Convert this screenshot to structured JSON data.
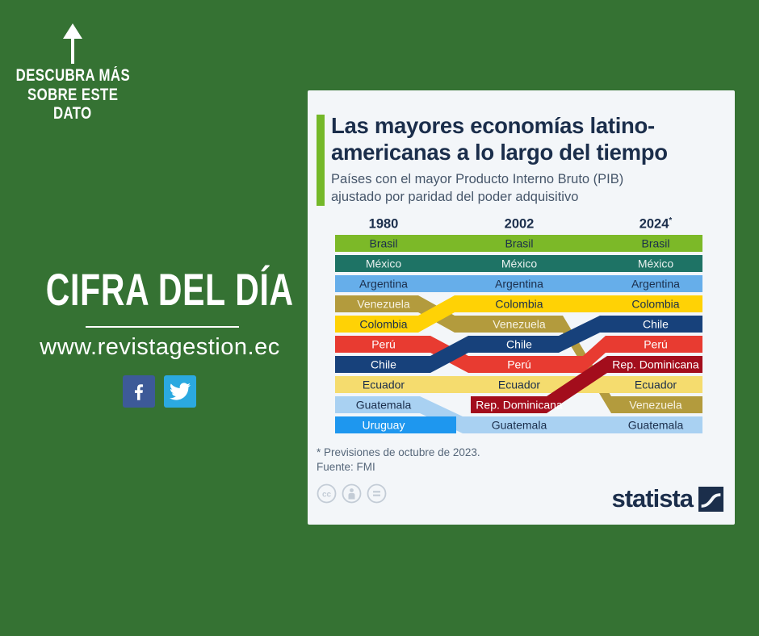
{
  "page": {
    "background_color": "#357233"
  },
  "left_panel": {
    "arrow_caption_lines": [
      "DESCUBRA MÁS",
      "SOBRE ESTE",
      "DATO"
    ],
    "heading": "CIFRA DEL DÍA",
    "website": "www.revistagestion.ec",
    "facebook_color": "#3D5A98",
    "twitter_color": "#2BA9E0"
  },
  "card": {
    "accent_color": "#74B829",
    "title_line1": "Las mayores economías latino-",
    "title_line2": "americanas a lo largo del tiempo",
    "subtitle_line1": "Países con el mayor Producto Interno Bruto (PIB)",
    "subtitle_line2": "ajustado por paridad del poder adquisitivo",
    "footnote_line1": "* Previsiones de octubre de 2023.",
    "footnote_line2": "Fuente: FMI",
    "brand": "statista"
  },
  "chart_data": {
    "type": "bump",
    "title": "Las mayores economías latinoamericanas a lo largo del tiempo",
    "subtitle": "Países con el mayor Producto Interno Bruto (PIB) ajustado por paridad del poder adquisitivo",
    "note": "* Previsiones de octubre de 2023.",
    "source": "Fuente: FMI",
    "columns": [
      {
        "label": "1980",
        "sup": ""
      },
      {
        "label": "2002",
        "sup": ""
      },
      {
        "label": "2024",
        "sup": "*"
      }
    ],
    "rankings": {
      "1980": [
        "Brasil",
        "México",
        "Argentina",
        "Venezuela",
        "Colombia",
        "Perú",
        "Chile",
        "Ecuador",
        "Guatemala",
        "Uruguay"
      ],
      "2002": [
        "Brasil",
        "México",
        "Argentina",
        "Colombia",
        "Venezuela",
        "Chile",
        "Perú",
        "Ecuador",
        "Rep. Dominicana",
        "Guatemala"
      ],
      "2024": [
        "Brasil",
        "México",
        "Argentina",
        "Colombia",
        "Chile",
        "Perú",
        "Rep. Dominicana",
        "Ecuador",
        "Venezuela",
        "Guatemala"
      ]
    },
    "countries": [
      {
        "id": "brasil",
        "name": "Brasil",
        "color": "#7CB928",
        "label_color": "#1B2E4B",
        "ranks": [
          1,
          1,
          1
        ]
      },
      {
        "id": "mexico",
        "name": "México",
        "color": "#1E7365",
        "label_color": "#E9F1EF",
        "ranks": [
          2,
          2,
          2
        ]
      },
      {
        "id": "argentina",
        "name": "Argentina",
        "color": "#66AEEA",
        "label_color": "#1B2E4B",
        "ranks": [
          3,
          3,
          3
        ]
      },
      {
        "id": "venezuela",
        "name": "Venezuela",
        "color": "#B39B3D",
        "label_color": "#F7F3E4",
        "ranks": [
          4,
          5,
          9
        ]
      },
      {
        "id": "colombia",
        "name": "Colombia",
        "color": "#FFD205",
        "label_color": "#1B2E4B",
        "ranks": [
          5,
          4,
          4
        ]
      },
      {
        "id": "peru",
        "name": "Perú",
        "color": "#E83B31",
        "label_color": "#FFFFFF",
        "ranks": [
          6,
          7,
          6
        ]
      },
      {
        "id": "chile",
        "name": "Chile",
        "color": "#17417B",
        "label_color": "#FFFFFF",
        "ranks": [
          7,
          6,
          5
        ]
      },
      {
        "id": "ecuador",
        "name": "Ecuador",
        "color": "#F5DC6E",
        "label_color": "#1B2E4B",
        "ranks": [
          8,
          8,
          8
        ]
      },
      {
        "id": "guatemala",
        "name": "Guatemala",
        "color": "#A9D1F2",
        "label_color": "#1B2E4B",
        "ranks": [
          9,
          10,
          10
        ]
      },
      {
        "id": "uruguay",
        "name": "Uruguay",
        "color": "#1E97EF",
        "label_color": "#FFFFFF",
        "ranks": [
          10,
          null,
          null
        ]
      },
      {
        "id": "repdom",
        "name": "Rep. Dominicana",
        "color": "#A30D1C",
        "label_color": "#FFFFFF",
        "ranks": [
          null,
          9,
          7
        ]
      }
    ]
  }
}
